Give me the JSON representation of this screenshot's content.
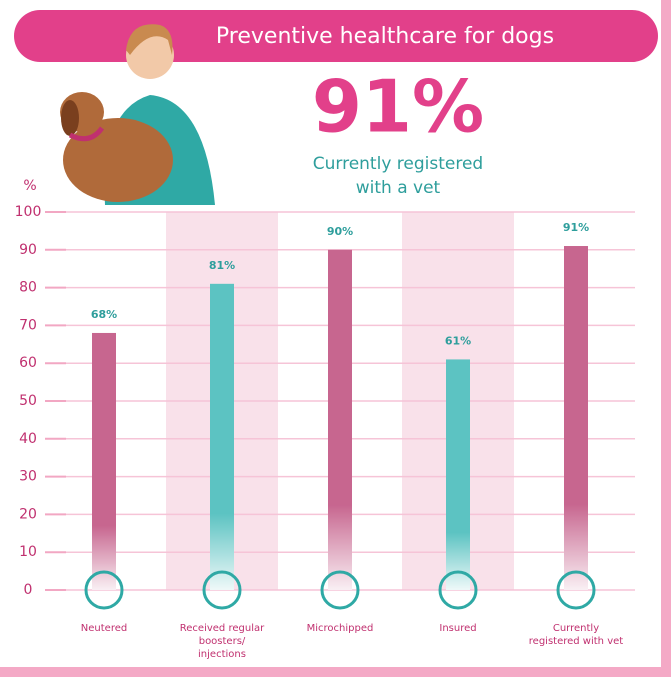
{
  "chart_data": {
    "type": "bar",
    "title": "Preventive healthcare for dogs",
    "highlight": {
      "value": 91,
      "label": "91%",
      "caption": [
        "Currently registered",
        "with a vet"
      ]
    },
    "y_label": "%",
    "categories": [
      "Neutered",
      "Received regular boosters/ injections",
      "Microchipped",
      "Insured",
      "Currently registered with vet"
    ],
    "values": [
      68,
      81,
      90,
      61,
      91
    ],
    "value_labels": [
      "68%",
      "81%",
      "90%",
      "61%",
      "91%"
    ],
    "colors": [
      "#c7668f",
      "#5cc3c2",
      "#c7668f",
      "#5cc3c2",
      "#c7668f"
    ],
    "ylim": [
      0,
      100
    ],
    "yticks": [
      0,
      10,
      20,
      30,
      40,
      50,
      60,
      70,
      80,
      90,
      100
    ],
    "grid": true
  }
}
